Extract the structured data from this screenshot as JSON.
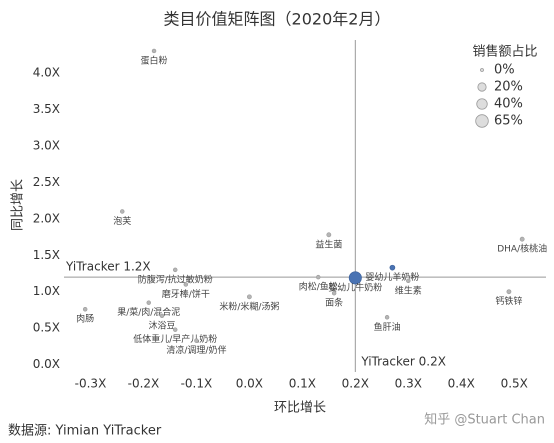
{
  "chart_data": {
    "type": "scatter",
    "title": "类目价值矩阵图（2020年2月）",
    "x_label": "环比增长",
    "y_label": "同比增长",
    "labels": [
      "蛋白粉",
      "泡芙",
      "益生菌",
      "DHA/核桃油",
      "防腹泻/抗过敏奶粉",
      "磨牙棒/饼干",
      "肉松/鱼松",
      "婴幼儿羊奶粉",
      "婴幼儿牛奶粉",
      "维生素",
      "钙铁锌",
      "面条",
      "米粉/米糊/汤粥",
      "果/菜/肉/混合泥",
      "肉肠",
      "沐浴豆",
      "低体重儿/早产儿奶粉",
      "清凉/调理/奶伴",
      "鱼肝油"
    ],
    "x": [
      -0.18,
      -0.24,
      0.15,
      0.515,
      -0.14,
      -0.12,
      0.13,
      0.27,
      0.2,
      0.3,
      0.49,
      0.16,
      0.0,
      -0.19,
      -0.31,
      -0.165,
      -0.14,
      -0.1,
      0.26
    ],
    "values": [
      4.3,
      2.1,
      1.78,
      1.72,
      1.3,
      1.1,
      1.2,
      1.33,
      1.19,
      1.15,
      1.0,
      0.98,
      0.93,
      0.85,
      0.76,
      0.67,
      0.48,
      0.33,
      0.65
    ],
    "sizes": [
      0.5,
      0.5,
      1,
      1,
      0.5,
      0.5,
      0.5,
      3,
      62,
      0.5,
      1,
      0.5,
      1,
      0.5,
      0.5,
      0.5,
      0.5,
      0.5,
      0.5
    ],
    "colors": [
      "#b5b5b5",
      "#b5b5b5",
      "#b5b5b5",
      "#b5b5b5",
      "#b5b5b5",
      "#b5b5b5",
      "#b5b5b5",
      "#4a73b3",
      "#4a73b3",
      "#b5b5b5",
      "#b5b5b5",
      "#b5b5b5",
      "#b5b5b5",
      "#b5b5b5",
      "#b5b5b5",
      "#b5b5b5",
      "#b5b5b5",
      "#b5b5b5",
      "#b5b5b5"
    ],
    "xlim": [
      -0.35,
      0.56
    ],
    "ylim": [
      -0.1,
      4.45
    ],
    "xticks": [
      {
        "value": -0.3,
        "label": "-0.3X"
      },
      {
        "value": -0.2,
        "label": "-0.2X"
      },
      {
        "value": -0.1,
        "label": "-0.1X"
      },
      {
        "value": 0,
        "label": "0.0X"
      },
      {
        "value": 0.1,
        "label": "0.1X"
      },
      {
        "value": 0.2,
        "label": "0.2X"
      },
      {
        "value": 0.3,
        "label": "0.3X"
      },
      {
        "value": 0.4,
        "label": "0.4X"
      },
      {
        "value": 0.5,
        "label": "0.5X"
      }
    ],
    "yticks": [
      {
        "value": 0,
        "label": "0.0X"
      },
      {
        "value": 0.5,
        "label": "0.5X"
      },
      {
        "value": 1,
        "label": "1.0X"
      },
      {
        "value": 1.5,
        "label": "1.5X"
      },
      {
        "value": 2,
        "label": "2.0X"
      },
      {
        "value": 2.5,
        "label": "2.5X"
      },
      {
        "value": 3,
        "label": "3.0X"
      },
      {
        "value": 3.5,
        "label": "3.5X"
      },
      {
        "value": 4,
        "label": "4.0X"
      }
    ],
    "x_reference": {
      "value": 0.2,
      "label": "YiTracker 0.2X"
    },
    "y_reference": {
      "value": 1.2,
      "label": "YiTracker 1.2X"
    },
    "size_legend": {
      "title": "销售额占比",
      "entries": [
        {
          "value": 0,
          "label": "0%"
        },
        {
          "value": 20,
          "label": "20%"
        },
        {
          "value": 40,
          "label": "40%"
        },
        {
          "value": 65,
          "label": "65%"
        }
      ]
    },
    "source": "数据源: Yimian YiTracker",
    "watermark": "知乎 @Stuart Chan"
  }
}
